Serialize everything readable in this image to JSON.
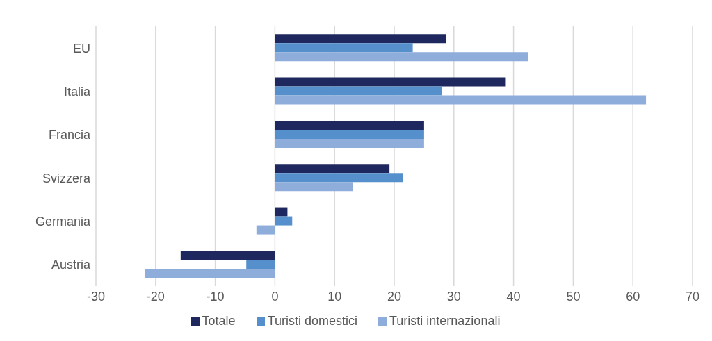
{
  "chart_data": {
    "type": "bar",
    "orientation": "horizontal",
    "categories": [
      "EU",
      "Italia",
      "Francia",
      "Svizzera",
      "Germania",
      "Austria"
    ],
    "series": [
      {
        "name": "Totale",
        "color": "#1f285e",
        "values": [
          28.7,
          38.7,
          25,
          19.2,
          2.1,
          -15.8
        ]
      },
      {
        "name": "Turisti domestici",
        "color": "#5590cc",
        "values": [
          23.1,
          28.0,
          25,
          21.4,
          2.9,
          -4.8
        ]
      },
      {
        "name": "Turisti internazionali",
        "color": "#8eaddb",
        "values": [
          42.4,
          62.2,
          25,
          13.1,
          -3.1,
          -21.8
        ]
      }
    ],
    "xlim": [
      -30,
      70
    ],
    "xticks": [
      -30,
      -20,
      -10,
      0,
      10,
      20,
      30,
      40,
      50,
      60,
      70
    ],
    "grid": "x",
    "legend": "bottom"
  }
}
